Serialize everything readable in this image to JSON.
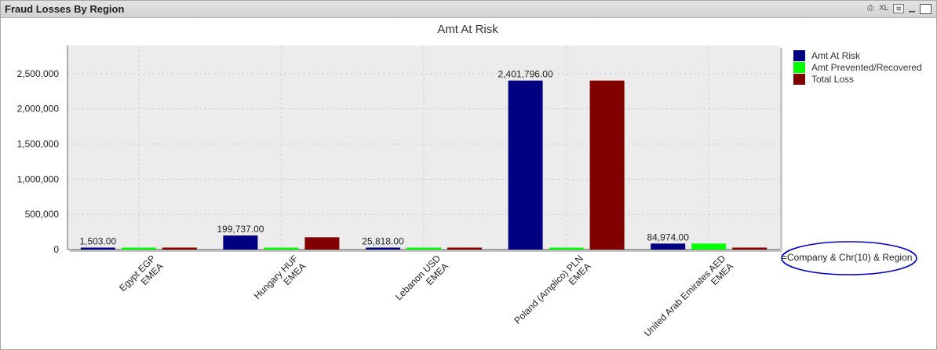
{
  "window": {
    "title": "Fraud Losses By Region",
    "icons": [
      {
        "name": "print-icon",
        "glyph": "⎙"
      },
      {
        "name": "xl-export-icon",
        "label": "XL"
      },
      {
        "name": "chart-type-icon",
        "glyph": "≋"
      },
      {
        "name": "minimize-icon",
        "glyph": "▁"
      },
      {
        "name": "maximize-icon",
        "glyph": ""
      }
    ]
  },
  "dimension_expression": "=Company & Chr(10) & Region",
  "colors": {
    "series1": "#000080",
    "series2": "#00ff00",
    "series3": "#800000",
    "plot_bg": "#ececec",
    "annotation": "#0000cc"
  },
  "chart_data": {
    "type": "bar",
    "title": "Amt At Risk",
    "xlabel": "",
    "ylabel": "",
    "categories": [
      [
        "Egypt EGP",
        "EMEA"
      ],
      [
        "Hungary HUF",
        "EMEA"
      ],
      [
        "Lebanon USD",
        "EMEA"
      ],
      [
        "Poland (Amplico) PLN",
        "EMEA"
      ],
      [
        "United Arab Emirates AED",
        "EMEA"
      ]
    ],
    "series": [
      {
        "name": "Amt At Risk",
        "color": "#000080",
        "values": [
          1503,
          199737,
          25818,
          2401796,
          84974
        ],
        "labels": [
          "1,503.00",
          "199,737.00",
          "25,818.00",
          "2,401,796.00",
          "84,974.00"
        ]
      },
      {
        "name": "Amt Prevented/Recovered",
        "color": "#00ff00",
        "values": [
          0,
          25000,
          0,
          0,
          85000
        ],
        "labels": []
      },
      {
        "name": "Total Loss",
        "color": "#800000",
        "values": [
          1503,
          174737,
          25818,
          2401796,
          0
        ],
        "labels": []
      }
    ],
    "ylim": [
      0,
      2900000
    ],
    "yticks": [
      0,
      500000,
      1000000,
      1500000,
      2000000,
      2500000
    ],
    "ytick_labels": [
      "0",
      "500,000",
      "1,000,000",
      "1,500,000",
      "2,000,000",
      "2,500,000"
    ],
    "grid": true,
    "legend": "right"
  }
}
